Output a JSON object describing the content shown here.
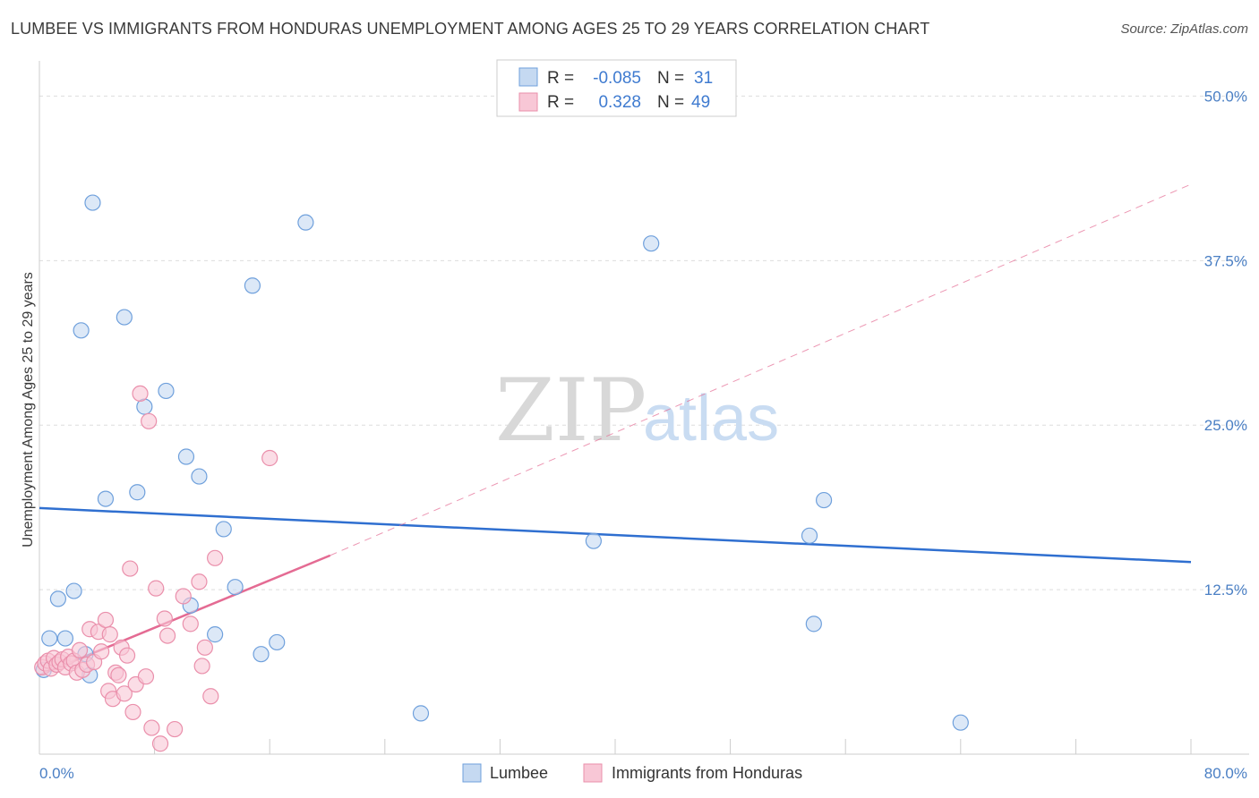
{
  "title": "LUMBEE VS IMMIGRANTS FROM HONDURAS UNEMPLOYMENT AMONG AGES 25 TO 29 YEARS CORRELATION CHART",
  "source": "Source: ZipAtlas.com",
  "watermark": {
    "zip": "ZIP",
    "atlas": "atlas"
  },
  "colors": {
    "lumbee_fill": "#c5d9f1",
    "lumbee_stroke": "#6fa0dc",
    "lumbee_line": "#2f6fd0",
    "honduras_fill": "#f8c7d6",
    "honduras_stroke": "#ea8fab",
    "honduras_line": "#e46b93",
    "tick": "#4a7fc4",
    "grid": "#dddddd"
  },
  "legend": {
    "rows": [
      {
        "r_label": "R =",
        "r_value": "-0.085",
        "n_label": "N =",
        "n_value": "31"
      },
      {
        "r_label": "R =",
        "r_value": "0.328",
        "n_label": "N =",
        "n_value": "49"
      }
    ]
  },
  "chart_data": {
    "type": "scatter",
    "title": "LUMBEE VS IMMIGRANTS FROM HONDURAS UNEMPLOYMENT AMONG AGES 25 TO 29 YEARS CORRELATION CHART",
    "xlabel": "",
    "ylabel": "Unemployment Among Ages 25 to 29 years",
    "xlim": [
      0,
      80
    ],
    "ylim": [
      0,
      52
    ],
    "x_tick_labels": [
      "0.0%",
      "80.0%"
    ],
    "y_ticks": [
      12.5,
      25.0,
      37.5,
      50.0
    ],
    "y_tick_labels": [
      "12.5%",
      "25.0%",
      "37.5%",
      "50.0%"
    ],
    "grid": true,
    "legend_position": "bottom",
    "series": [
      {
        "name": "Lumbee",
        "r": -0.085,
        "n": 31,
        "points": [
          [
            0.3,
            6.4
          ],
          [
            0.7,
            8.8
          ],
          [
            1.3,
            11.8
          ],
          [
            1.8,
            8.8
          ],
          [
            2.4,
            12.4
          ],
          [
            2.9,
            32.2
          ],
          [
            3.2,
            7.6
          ],
          [
            3.5,
            6.0
          ],
          [
            3.7,
            41.9
          ],
          [
            4.6,
            19.4
          ],
          [
            5.9,
            33.2
          ],
          [
            6.8,
            19.9
          ],
          [
            7.3,
            26.4
          ],
          [
            8.8,
            27.6
          ],
          [
            10.2,
            22.6
          ],
          [
            10.5,
            11.3
          ],
          [
            11.1,
            21.1
          ],
          [
            12.2,
            9.1
          ],
          [
            12.8,
            17.1
          ],
          [
            13.6,
            12.7
          ],
          [
            14.8,
            35.6
          ],
          [
            15.4,
            7.6
          ],
          [
            16.5,
            8.5
          ],
          [
            18.5,
            40.4
          ],
          [
            26.5,
            3.1
          ],
          [
            38.5,
            16.2
          ],
          [
            42.5,
            38.8
          ],
          [
            53.5,
            16.6
          ],
          [
            54.5,
            19.3
          ],
          [
            53.8,
            9.9
          ],
          [
            64.0,
            2.4
          ]
        ]
      },
      {
        "name": "Immigrants from Honduras",
        "r": 0.328,
        "n": 49,
        "points": [
          [
            0.2,
            6.6
          ],
          [
            0.4,
            6.9
          ],
          [
            0.6,
            7.1
          ],
          [
            0.8,
            6.5
          ],
          [
            1.0,
            7.3
          ],
          [
            1.2,
            6.8
          ],
          [
            1.4,
            7.0
          ],
          [
            1.6,
            7.2
          ],
          [
            1.8,
            6.6
          ],
          [
            2.0,
            7.4
          ],
          [
            2.2,
            6.9
          ],
          [
            2.4,
            7.1
          ],
          [
            2.6,
            6.2
          ],
          [
            2.8,
            7.9
          ],
          [
            3.0,
            6.4
          ],
          [
            3.3,
            6.8
          ],
          [
            3.5,
            9.5
          ],
          [
            3.8,
            7.0
          ],
          [
            4.1,
            9.3
          ],
          [
            4.3,
            7.8
          ],
          [
            4.6,
            10.2
          ],
          [
            4.8,
            4.8
          ],
          [
            4.9,
            9.1
          ],
          [
            5.1,
            4.2
          ],
          [
            5.3,
            6.2
          ],
          [
            5.5,
            6.0
          ],
          [
            5.7,
            8.1
          ],
          [
            5.9,
            4.6
          ],
          [
            6.1,
            7.5
          ],
          [
            6.3,
            14.1
          ],
          [
            6.5,
            3.2
          ],
          [
            6.7,
            5.3
          ],
          [
            7.0,
            27.4
          ],
          [
            7.4,
            5.9
          ],
          [
            7.6,
            25.3
          ],
          [
            7.8,
            2.0
          ],
          [
            8.1,
            12.6
          ],
          [
            8.4,
            0.8
          ],
          [
            8.7,
            10.3
          ],
          [
            8.9,
            9.0
          ],
          [
            9.4,
            1.9
          ],
          [
            10.0,
            12.0
          ],
          [
            10.5,
            9.9
          ],
          [
            11.1,
            13.1
          ],
          [
            11.3,
            6.7
          ],
          [
            11.5,
            8.1
          ],
          [
            11.9,
            4.4
          ],
          [
            12.2,
            14.9
          ],
          [
            16.0,
            22.5
          ]
        ]
      }
    ],
    "trend_lines": [
      {
        "series": "Lumbee",
        "x0": 0,
        "y0": 18.7,
        "x1": 80,
        "y1": 14.6,
        "style": "solid"
      },
      {
        "series": "Immigrants from Honduras",
        "x0": 0,
        "y0": 6.0,
        "x1": 20.2,
        "y1": 15.1,
        "style": "solid"
      },
      {
        "series": "Immigrants from Honduras",
        "x0": 20.2,
        "y0": 15.1,
        "x1": 80,
        "y1": 43.3,
        "style": "dashed"
      }
    ]
  },
  "bottom_legend": [
    {
      "label": "Lumbee"
    },
    {
      "label": "Immigrants from Honduras"
    }
  ]
}
